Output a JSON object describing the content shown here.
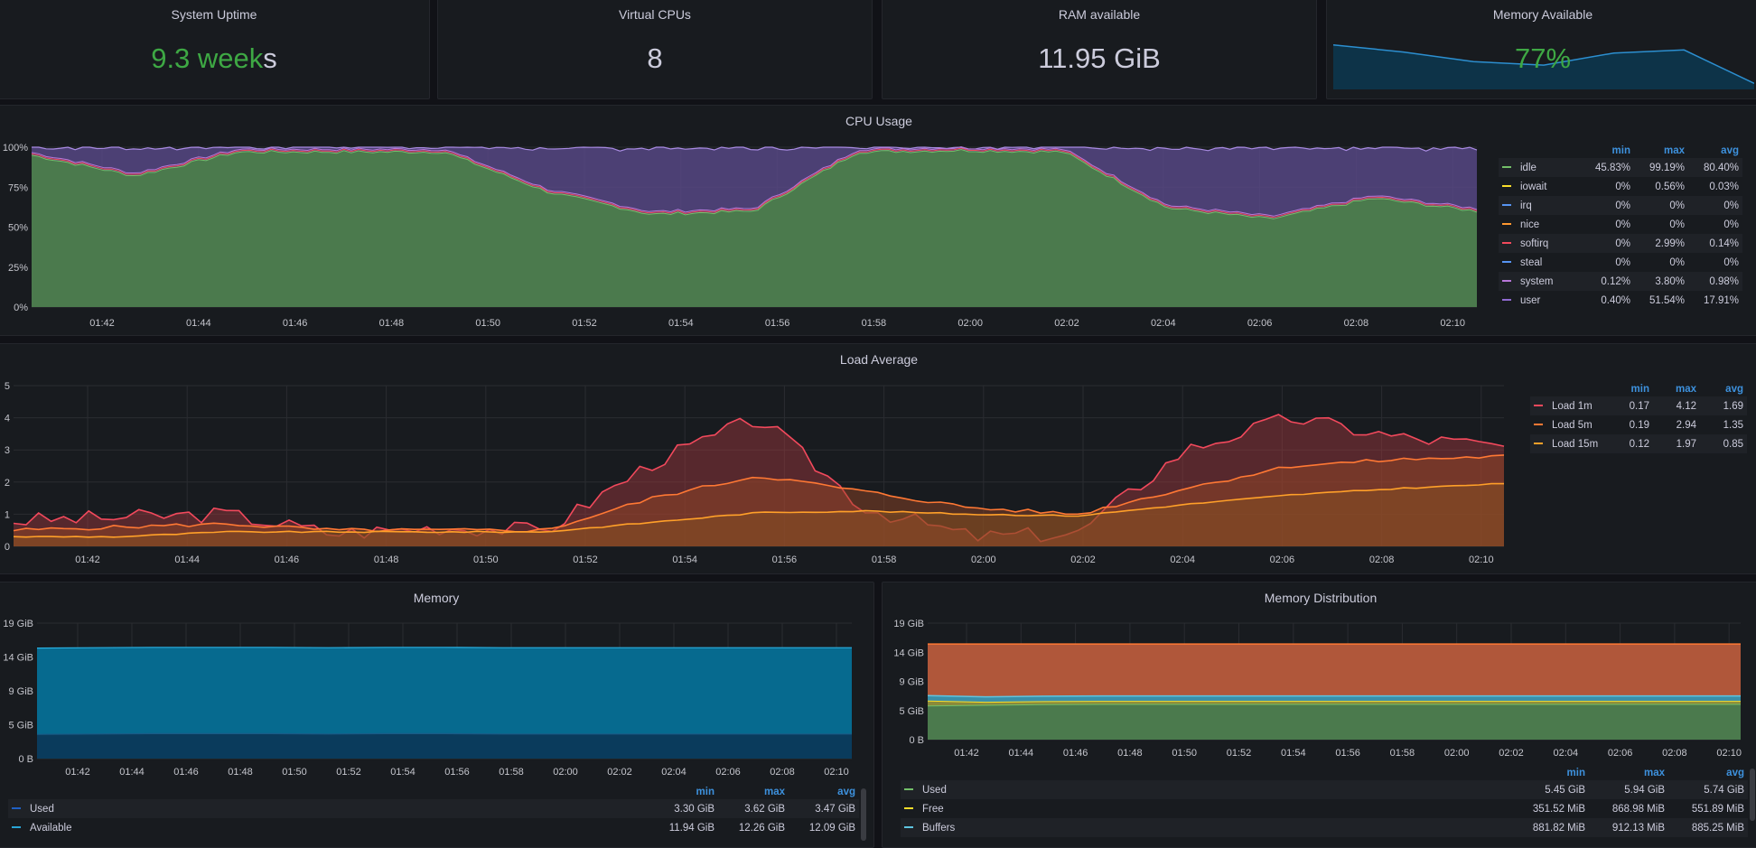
{
  "stats": {
    "uptime": {
      "title": "System Uptime",
      "value": "9.3 week",
      "suffix": "s",
      "color": "#3ea844"
    },
    "vcpus": {
      "title": "Virtual CPUs",
      "value": "8"
    },
    "ram": {
      "title": "RAM available",
      "value": "11.95 GiB"
    },
    "mem_avail": {
      "title": "Memory Available",
      "value": "77%",
      "color": "#3ea844",
      "sparkline": [
        0.88,
        0.74,
        0.55,
        0.48,
        0.72,
        0.78,
        0.12
      ]
    }
  },
  "time_ticks": [
    "01:42",
    "01:44",
    "01:46",
    "01:48",
    "01:50",
    "01:52",
    "01:54",
    "01:56",
    "01:58",
    "02:00",
    "02:02",
    "02:04",
    "02:06",
    "02:08",
    "02:10"
  ],
  "cpu": {
    "title": "CPU Usage",
    "y_ticks": [
      "0%",
      "25%",
      "50%",
      "75%",
      "100%"
    ],
    "legend_headers": [
      "min",
      "max",
      "avg"
    ],
    "legend": [
      {
        "name": "idle",
        "color": "#73bf69",
        "min": "45.83%",
        "max": "99.19%",
        "avg": "80.40%"
      },
      {
        "name": "iowait",
        "color": "#fade2a",
        "min": "0%",
        "max": "0.56%",
        "avg": "0.03%"
      },
      {
        "name": "irq",
        "color": "#5794f2",
        "min": "0%",
        "max": "0%",
        "avg": "0%"
      },
      {
        "name": "nice",
        "color": "#ff9830",
        "min": "0%",
        "max": "0%",
        "avg": "0%"
      },
      {
        "name": "softirq",
        "color": "#f2495c",
        "min": "0%",
        "max": "2.99%",
        "avg": "0.14%"
      },
      {
        "name": "steal",
        "color": "#5794f2",
        "min": "0%",
        "max": "0%",
        "avg": "0%"
      },
      {
        "name": "system",
        "color": "#b877d9",
        "min": "0.12%",
        "max": "3.80%",
        "avg": "0.98%"
      },
      {
        "name": "user",
        "color": "#8f6ad0",
        "min": "0.40%",
        "max": "51.54%",
        "avg": "17.91%"
      }
    ]
  },
  "load": {
    "title": "Load Average",
    "y_ticks": [
      "0",
      "1",
      "2",
      "3",
      "4",
      "5"
    ],
    "legend_headers": [
      "min",
      "max",
      "avg"
    ],
    "legend": [
      {
        "name": "Load 1m",
        "color": "#f2495c",
        "min": "0.17",
        "max": "4.12",
        "avg": "1.69"
      },
      {
        "name": "Load 5m",
        "color": "#ff7834",
        "min": "0.19",
        "max": "2.94",
        "avg": "1.35"
      },
      {
        "name": "Load 15m",
        "color": "#ffa029",
        "min": "0.12",
        "max": "1.97",
        "avg": "0.85"
      }
    ]
  },
  "memory": {
    "title": "Memory",
    "y_ticks": [
      "0 B",
      "5 GiB",
      "9 GiB",
      "14 GiB",
      "19 GiB"
    ],
    "legend_headers": [
      "min",
      "max",
      "avg"
    ],
    "legend": [
      {
        "name": "Used",
        "color": "#1f60c4",
        "min": "3.30 GiB",
        "max": "3.62 GiB",
        "avg": "3.47 GiB"
      },
      {
        "name": "Available",
        "color": "#29a5d6",
        "min": "11.94 GiB",
        "max": "12.26 GiB",
        "avg": "12.09 GiB"
      }
    ]
  },
  "memdist": {
    "title": "Memory Distribution",
    "y_ticks": [
      "0 B",
      "5 GiB",
      "9 GiB",
      "14 GiB",
      "19 GiB"
    ],
    "legend_headers": [
      "min",
      "max",
      "avg"
    ],
    "legend": [
      {
        "name": "Used",
        "color": "#73bf69",
        "min": "5.45 GiB",
        "max": "5.94 GiB",
        "avg": "5.74 GiB"
      },
      {
        "name": "Free",
        "color": "#fade2a",
        "min": "351.52 MiB",
        "max": "868.98 MiB",
        "avg": "551.89 MiB"
      },
      {
        "name": "Buffers",
        "color": "#5ec4e0",
        "min": "881.82 MiB",
        "max": "912.13 MiB",
        "avg": "885.25 MiB"
      }
    ]
  },
  "chart_data": [
    {
      "type": "area",
      "title": "CPU Usage",
      "x": [
        "01:42",
        "01:44",
        "01:46",
        "01:48",
        "01:50",
        "01:52",
        "01:54",
        "01:56",
        "01:58",
        "02:00",
        "02:02",
        "02:04",
        "02:06",
        "02:08",
        "02:10"
      ],
      "ylim": [
        0,
        100
      ],
      "series": [
        {
          "name": "idle",
          "values": [
            95,
            82,
            97,
            97,
            97,
            72,
            58,
            60,
            97,
            98,
            97,
            62,
            55,
            68,
            60
          ]
        },
        {
          "name": "user",
          "values": [
            4,
            16,
            2,
            2,
            2,
            26,
            40,
            38,
            2,
            1,
            2,
            36,
            43,
            30,
            38
          ]
        }
      ]
    },
    {
      "type": "line",
      "title": "Load Average",
      "x": [
        "01:42",
        "01:44",
        "01:46",
        "01:48",
        "01:50",
        "01:52",
        "01:54",
        "01:56",
        "01:58",
        "02:00",
        "02:02",
        "02:04",
        "02:06",
        "02:08",
        "02:10"
      ],
      "ylim": [
        0,
        5
      ],
      "series": [
        {
          "name": "Load 1m",
          "values": [
            0.8,
            0.9,
            1.0,
            0.4,
            0.6,
            0.5,
            2.6,
            4.0,
            1.2,
            0.3,
            0.4,
            3.0,
            4.0,
            3.4,
            3.1
          ]
        },
        {
          "name": "Load 5m",
          "values": [
            0.5,
            0.6,
            0.7,
            0.5,
            0.5,
            0.5,
            1.5,
            2.2,
            1.7,
            1.2,
            1.0,
            1.8,
            2.5,
            2.7,
            2.8
          ]
        },
        {
          "name": "Load 15m",
          "values": [
            0.3,
            0.3,
            0.45,
            0.45,
            0.45,
            0.45,
            0.75,
            1.05,
            1.1,
            1.0,
            0.95,
            1.3,
            1.6,
            1.8,
            1.95
          ]
        }
      ]
    },
    {
      "type": "area",
      "title": "Memory",
      "x": [
        "01:42",
        "01:44",
        "01:46",
        "01:48",
        "01:50",
        "01:52",
        "01:54",
        "01:56",
        "01:58",
        "02:00",
        "02:02",
        "02:04",
        "02:06",
        "02:08",
        "02:10"
      ],
      "ylim": [
        0,
        19
      ],
      "series": [
        {
          "name": "Used",
          "values": [
            3.4,
            3.45,
            3.5,
            3.5,
            3.5,
            3.45,
            3.5,
            3.5,
            3.45,
            3.45,
            3.45,
            3.45,
            3.45,
            3.45,
            3.45
          ]
        },
        {
          "name": "Available",
          "values": [
            12.1,
            12.1,
            12.1,
            12.1,
            12.1,
            12.1,
            12.1,
            12.1,
            12.1,
            12.1,
            12.1,
            12.1,
            12.1,
            12.1,
            12.1
          ]
        }
      ]
    },
    {
      "type": "area",
      "title": "Memory Distribution",
      "x": [
        "01:42",
        "01:44",
        "01:46",
        "01:48",
        "01:50",
        "01:52",
        "01:54",
        "01:56",
        "01:58",
        "02:00",
        "02:02",
        "02:04",
        "02:06",
        "02:08",
        "02:10"
      ],
      "ylim": [
        0,
        19
      ],
      "series": [
        {
          "name": "Used",
          "values": [
            5.5,
            5.6,
            5.7,
            5.75,
            5.75,
            5.75,
            5.75,
            5.75,
            5.75,
            5.75,
            5.75,
            5.75,
            5.75,
            5.75,
            5.75
          ]
        },
        {
          "name": "Free",
          "values": [
            0.8,
            0.5,
            0.5,
            0.5,
            0.5,
            0.5,
            0.5,
            0.5,
            0.5,
            0.5,
            0.5,
            0.5,
            0.5,
            0.5,
            0.5
          ]
        },
        {
          "name": "Buffers",
          "values": [
            0.88,
            0.88,
            0.88,
            0.88,
            0.88,
            0.88,
            0.88,
            0.88,
            0.88,
            0.88,
            0.88,
            0.88,
            0.88,
            0.88,
            0.88
          ]
        }
      ]
    }
  ]
}
